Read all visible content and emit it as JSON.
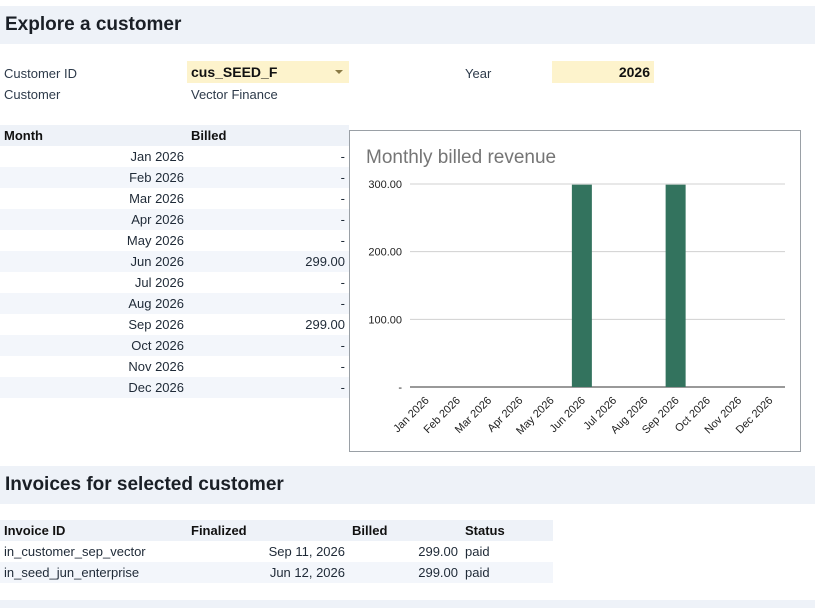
{
  "sections": {
    "explore_title": "Explore a customer",
    "invoices_title": "Invoices for selected customer"
  },
  "filters": {
    "customer_id_label": "Customer ID",
    "customer_id_value": "cus_SEED_F",
    "customer_label": "Customer",
    "customer_value": "Vector Finance",
    "year_label": "Year",
    "year_value": "2026"
  },
  "monthly_table": {
    "headers": [
      "Month",
      "Billed"
    ],
    "rows": [
      {
        "month": "Jan 2026",
        "billed": "-"
      },
      {
        "month": "Feb 2026",
        "billed": "-"
      },
      {
        "month": "Mar 2026",
        "billed": "-"
      },
      {
        "month": "Apr 2026",
        "billed": "-"
      },
      {
        "month": "May 2026",
        "billed": "-"
      },
      {
        "month": "Jun 2026",
        "billed": "299.00"
      },
      {
        "month": "Jul 2026",
        "billed": "-"
      },
      {
        "month": "Aug 2026",
        "billed": "-"
      },
      {
        "month": "Sep 2026",
        "billed": "299.00"
      },
      {
        "month": "Oct 2026",
        "billed": "-"
      },
      {
        "month": "Nov 2026",
        "billed": "-"
      },
      {
        "month": "Dec 2026",
        "billed": "-"
      }
    ]
  },
  "chart_data": {
    "type": "bar",
    "title": "Monthly billed revenue",
    "categories": [
      "Jan 2026",
      "Feb 2026",
      "Mar 2026",
      "Apr 2026",
      "May 2026",
      "Jun 2026",
      "Jul 2026",
      "Aug 2026",
      "Sep 2026",
      "Oct 2026",
      "Nov 2026",
      "Dec 2026"
    ],
    "values": [
      0,
      0,
      0,
      0,
      0,
      299,
      0,
      0,
      299,
      0,
      0,
      0
    ],
    "ylim": [
      0,
      300
    ],
    "yticks": [
      0,
      100,
      200,
      300
    ],
    "ytick_labels": [
      "-",
      "100.00",
      "200.00",
      "300.00"
    ],
    "xlabel": "",
    "ylabel": "",
    "grid": true,
    "bar_color": "#33735e"
  },
  "invoices_table": {
    "headers": [
      "Invoice ID",
      "Finalized",
      "Billed",
      "Status"
    ],
    "rows": [
      {
        "id": "in_customer_sep_vector",
        "finalized": "Sep 11, 2026",
        "billed": "299.00",
        "status": "paid"
      },
      {
        "id": "in_seed_jun_enterprise",
        "finalized": "Jun 12, 2026",
        "billed": "299.00",
        "status": "paid"
      }
    ]
  }
}
